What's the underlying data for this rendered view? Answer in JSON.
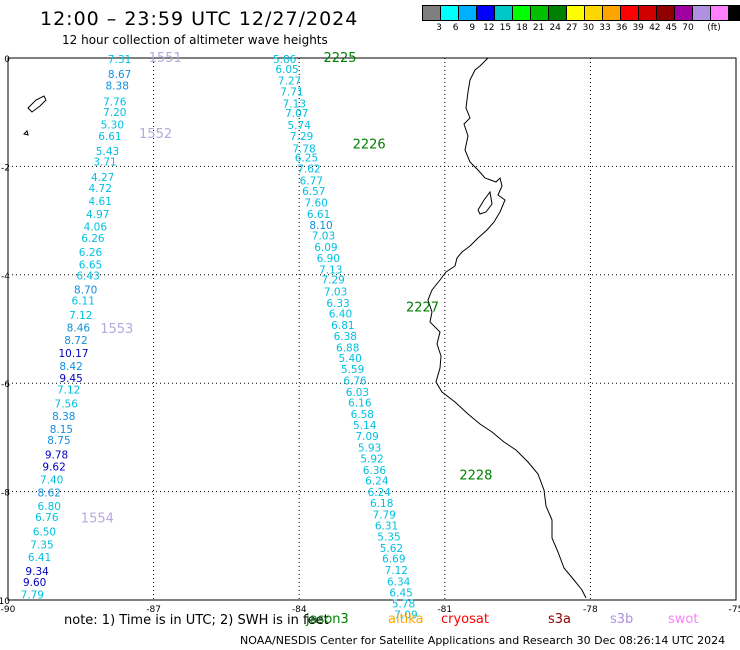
{
  "header": {
    "title": "12:00 – 23:59 UTC 12/27/2024",
    "subtitle": "12 hour collection of altimeter wave heights"
  },
  "legend": {
    "unit": "(ft)",
    "colors": [
      "#7f7f7f",
      "#00ffff",
      "#00b0ff",
      "#0000ff",
      "#00c8c8",
      "#00ff00",
      "#00c000",
      "#008000",
      "#ffff00",
      "#ffd700",
      "#ffa500",
      "#ff0000",
      "#d00000",
      "#900000",
      "#a000a0",
      "#b090e0",
      "#ff80ff",
      "#000000"
    ],
    "labels": [
      "3",
      "6",
      "9",
      "12",
      "15",
      "18",
      "21",
      "24",
      "27",
      "30",
      "33",
      "36",
      "39",
      "42",
      "45",
      "70"
    ]
  },
  "map": {
    "lon_labels": [
      "-90",
      "-87",
      "-84",
      "-81",
      "-78",
      "-75"
    ],
    "lat_labels": [
      "0",
      "-2",
      "-4",
      "-6",
      "-8",
      "-10"
    ],
    "passes": [
      {
        "id": "1551",
        "lon": -87.1,
        "lat": 0.0
      },
      {
        "id": "1552",
        "lon": -87.3,
        "lat": -1.4
      },
      {
        "id": "1553",
        "lon": -88.1,
        "lat": -5.0
      },
      {
        "id": "1554",
        "lon": -88.5,
        "lat": -8.5
      },
      {
        "id": "2225",
        "lon": -83.5,
        "lat": 0.0
      },
      {
        "id": "2226",
        "lon": -82.9,
        "lat": -1.6
      },
      {
        "id": "2227",
        "lon": -81.8,
        "lat": -4.6
      },
      {
        "id": "2228",
        "lon": -80.7,
        "lat": -7.7
      }
    ],
    "track_west": {
      "color_low": "#00b0ff",
      "color_high": "#0000ff",
      "color_mid": "#00bfff",
      "points": [
        {
          "lon": -87.7,
          "lat": 0.0,
          "swh": 7.31
        },
        {
          "lon": -87.7,
          "lat": -0.28,
          "swh": 8.67
        },
        {
          "lon": -87.75,
          "lat": -0.49,
          "swh": 8.38
        },
        {
          "lon": -87.8,
          "lat": -0.78,
          "swh": 7.76
        },
        {
          "lon": -87.8,
          "lat": -0.98,
          "swh": 7.2
        },
        {
          "lon": -87.85,
          "lat": -1.21,
          "swh": 5.3
        },
        {
          "lon": -87.9,
          "lat": -1.42,
          "swh": 6.61
        },
        {
          "lon": -87.95,
          "lat": -1.7,
          "swh": 5.43
        },
        {
          "lon": -88.0,
          "lat": -1.89,
          "swh": 3.71
        },
        {
          "lon": -88.05,
          "lat": -2.18,
          "swh": 4.27
        },
        {
          "lon": -88.1,
          "lat": -2.38,
          "swh": 4.72
        },
        {
          "lon": -88.1,
          "lat": -2.62,
          "swh": 4.61
        },
        {
          "lon": -88.15,
          "lat": -2.86,
          "swh": 4.97
        },
        {
          "lon": -88.2,
          "lat": -3.09,
          "swh": 4.06
        },
        {
          "lon": -88.25,
          "lat": -3.3,
          "swh": 6.26
        },
        {
          "lon": -88.3,
          "lat": -3.56,
          "swh": 6.26
        },
        {
          "lon": -88.3,
          "lat": -3.79,
          "swh": 6.65
        },
        {
          "lon": -88.35,
          "lat": -3.99,
          "swh": 6.43
        },
        {
          "lon": -88.4,
          "lat": -4.25,
          "swh": 8.7
        },
        {
          "lon": -88.45,
          "lat": -4.46,
          "swh": 6.11
        },
        {
          "lon": -88.5,
          "lat": -4.72,
          "swh": 7.12
        },
        {
          "lon": -88.55,
          "lat": -4.95,
          "swh": 8.46
        },
        {
          "lon": -88.6,
          "lat": -5.18,
          "swh": 8.72
        },
        {
          "lon": -88.65,
          "lat": -5.42,
          "swh": 10.17
        },
        {
          "lon": -88.7,
          "lat": -5.66,
          "swh": 8.42
        },
        {
          "lon": -88.7,
          "lat": -5.89,
          "swh": 9.45
        },
        {
          "lon": -88.75,
          "lat": -6.1,
          "swh": 7.12
        },
        {
          "lon": -88.8,
          "lat": -6.36,
          "swh": 7.56
        },
        {
          "lon": -88.85,
          "lat": -6.59,
          "swh": 8.38
        },
        {
          "lon": -88.9,
          "lat": -6.83,
          "swh": 8.15
        },
        {
          "lon": -88.95,
          "lat": -7.03,
          "swh": 8.75
        },
        {
          "lon": -89.0,
          "lat": -7.3,
          "swh": 9.78
        },
        {
          "lon": -89.05,
          "lat": -7.52,
          "swh": 9.62
        },
        {
          "lon": -89.1,
          "lat": -7.76,
          "swh": 7.4
        },
        {
          "lon": -89.15,
          "lat": -8.0,
          "swh": 8.62
        },
        {
          "lon": -89.15,
          "lat": -8.25,
          "swh": 6.8
        },
        {
          "lon": -89.2,
          "lat": -8.45,
          "swh": 6.76
        },
        {
          "lon": -89.25,
          "lat": -8.72,
          "swh": 6.5
        },
        {
          "lon": -89.3,
          "lat": -8.96,
          "swh": 7.35
        },
        {
          "lon": -89.35,
          "lat": -9.19,
          "swh": 6.41
        },
        {
          "lon": -89.4,
          "lat": -9.45,
          "swh": 9.34
        },
        {
          "lon": -89.45,
          "lat": -9.65,
          "swh": 9.6
        },
        {
          "lon": -89.5,
          "lat": -9.88,
          "swh": 7.79
        }
      ]
    },
    "track_east": {
      "points": [
        {
          "lon": -84.3,
          "lat": 0.0,
          "swh": 5.86
        },
        {
          "lon": -84.25,
          "lat": -0.18,
          "swh": 6.05
        },
        {
          "lon": -84.2,
          "lat": -0.4,
          "swh": 7.27
        },
        {
          "lon": -84.15,
          "lat": -0.6,
          "swh": 7.71
        },
        {
          "lon": -84.1,
          "lat": -0.82,
          "swh": 7.13
        },
        {
          "lon": -84.05,
          "lat": -1.0,
          "swh": 7.07
        },
        {
          "lon": -84.0,
          "lat": -1.22,
          "swh": 5.74
        },
        {
          "lon": -83.95,
          "lat": -1.42,
          "swh": 7.29
        },
        {
          "lon": -83.9,
          "lat": -1.65,
          "swh": 7.78
        },
        {
          "lon": -83.85,
          "lat": -1.82,
          "swh": 6.25
        },
        {
          "lon": -83.8,
          "lat": -2.02,
          "swh": 7.62
        },
        {
          "lon": -83.75,
          "lat": -2.24,
          "swh": 6.77
        },
        {
          "lon": -83.7,
          "lat": -2.44,
          "swh": 6.57
        },
        {
          "lon": -83.65,
          "lat": -2.65,
          "swh": 7.6
        },
        {
          "lon": -83.6,
          "lat": -2.86,
          "swh": 6.61
        },
        {
          "lon": -83.55,
          "lat": -3.06,
          "swh": 8.1
        },
        {
          "lon": -83.5,
          "lat": -3.26,
          "swh": 7.03
        },
        {
          "lon": -83.45,
          "lat": -3.47,
          "swh": 6.09
        },
        {
          "lon": -83.4,
          "lat": -3.67,
          "swh": 6.9
        },
        {
          "lon": -83.35,
          "lat": -3.88,
          "swh": 7.13
        },
        {
          "lon": -83.3,
          "lat": -4.07,
          "swh": 7.29
        },
        {
          "lon": -83.25,
          "lat": -4.29,
          "swh": 7.03
        },
        {
          "lon": -83.2,
          "lat": -4.5,
          "swh": 6.33
        },
        {
          "lon": -83.15,
          "lat": -4.7,
          "swh": 6.4
        },
        {
          "lon": -83.1,
          "lat": -4.91,
          "swh": 6.81
        },
        {
          "lon": -83.05,
          "lat": -5.11,
          "swh": 6.38
        },
        {
          "lon": -83.0,
          "lat": -5.32,
          "swh": 6.88
        },
        {
          "lon": -82.95,
          "lat": -5.52,
          "swh": 5.4
        },
        {
          "lon": -82.9,
          "lat": -5.72,
          "swh": 5.59
        },
        {
          "lon": -82.85,
          "lat": -5.93,
          "swh": 6.76
        },
        {
          "lon": -82.8,
          "lat": -6.14,
          "swh": 6.03
        },
        {
          "lon": -82.75,
          "lat": -6.34,
          "swh": 6.16
        },
        {
          "lon": -82.7,
          "lat": -6.55,
          "swh": 6.58
        },
        {
          "lon": -82.65,
          "lat": -6.75,
          "swh": 5.14
        },
        {
          "lon": -82.6,
          "lat": -6.96,
          "swh": 7.09
        },
        {
          "lon": -82.55,
          "lat": -7.17,
          "swh": 5.93
        },
        {
          "lon": -82.5,
          "lat": -7.37,
          "swh": 5.92
        },
        {
          "lon": -82.45,
          "lat": -7.58,
          "swh": 6.36
        },
        {
          "lon": -82.4,
          "lat": -7.78,
          "swh": 6.24
        },
        {
          "lon": -82.35,
          "lat": -7.99,
          "swh": 6.24
        },
        {
          "lon": -82.3,
          "lat": -8.19,
          "swh": 6.18
        },
        {
          "lon": -82.25,
          "lat": -8.4,
          "swh": 7.79
        },
        {
          "lon": -82.2,
          "lat": -8.61,
          "swh": 6.31
        },
        {
          "lon": -82.15,
          "lat": -8.81,
          "swh": 5.35
        },
        {
          "lon": -82.1,
          "lat": -9.02,
          "swh": 5.62
        },
        {
          "lon": -82.05,
          "lat": -9.22,
          "swh": 6.69
        },
        {
          "lon": -82.0,
          "lat": -9.43,
          "swh": 7.12
        },
        {
          "lon": -81.95,
          "lat": -9.64,
          "swh": 6.34
        },
        {
          "lon": -81.9,
          "lat": -9.84,
          "swh": 6.45
        },
        {
          "lon": -81.85,
          "lat": -10.05,
          "swh": 5.78
        },
        {
          "lon": -81.8,
          "lat": -10.25,
          "swh": 7.09
        }
      ]
    }
  },
  "note": "note: 1) Time is in UTC; 2) SWH is in feet",
  "satellites": [
    {
      "name": "jason3",
      "color": "#008000"
    },
    {
      "name": "altika",
      "color": "#ffa500"
    },
    {
      "name": "cryosat",
      "color": "#ff0000"
    },
    {
      "name": "s3a",
      "color": "#900000"
    },
    {
      "name": "s3b",
      "color": "#b090e0"
    },
    {
      "name": "swot",
      "color": "#ff80ff"
    }
  ],
  "footer": "NOAA/NESDIS Center for Satellite Applications and Research   30 Dec 08:26:14 UTC 2024"
}
